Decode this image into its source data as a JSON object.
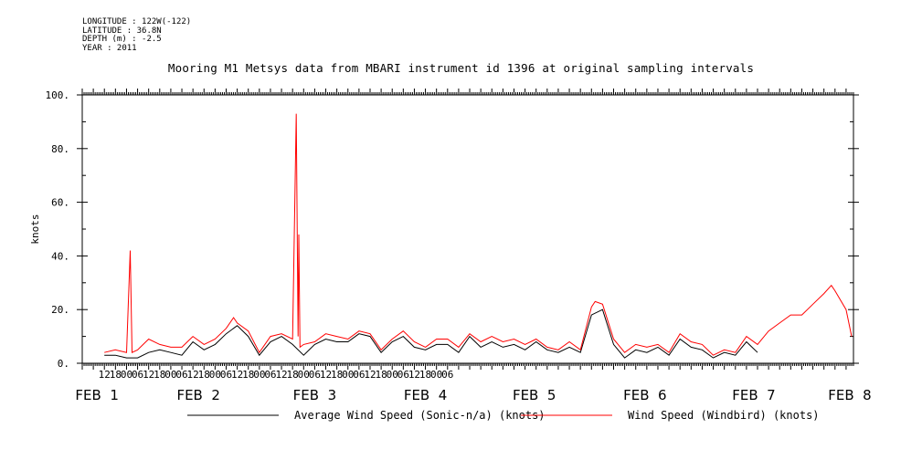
{
  "header": {
    "longitude": "LONGITUDE : 122W(-122)",
    "latitude": "LATITUDE : 36.8N",
    "depth": "DEPTH (m) : -2.5",
    "year": "YEAR : 2011"
  },
  "chart_data": {
    "type": "line",
    "title": "Mooring M1 Metsys data from MBARI instrument id 1396 at original sampling intervals",
    "ylabel": "knots",
    "xlabel": "",
    "ylim": [
      0,
      100
    ],
    "y_ticks": [
      "0.",
      "20.",
      "40.",
      "60.",
      "80.",
      "100."
    ],
    "hour_ticks": [
      "12",
      "18",
      "00",
      "06",
      "12",
      "18",
      "00",
      "06",
      "12",
      "18",
      "00",
      "06",
      "12",
      "18",
      "00",
      "06",
      "12",
      "18",
      "00",
      "06",
      "12",
      "18",
      "00",
      "06",
      "12",
      "18",
      "00",
      "06",
      "12",
      "18",
      "00",
      "06"
    ],
    "date_labels": [
      "FEB  1",
      "FEB  2",
      "FEB  3",
      "FEB  4",
      "FEB  5",
      "FEB  6",
      "FEB  7",
      "FEB  8"
    ],
    "grid": false,
    "legend_position": "bottom",
    "series": [
      {
        "name": "Average Wind Speed (Sonic-n/a) (knots)",
        "color": "#000000",
        "points": [
          [
            0,
            3
          ],
          [
            6,
            3
          ],
          [
            12,
            2
          ],
          [
            18,
            2
          ],
          [
            24,
            4
          ],
          [
            30,
            5
          ],
          [
            36,
            4
          ],
          [
            42,
            3
          ],
          [
            48,
            8
          ],
          [
            54,
            5
          ],
          [
            60,
            7
          ],
          [
            66,
            11
          ],
          [
            72,
            14
          ],
          [
            78,
            10
          ],
          [
            84,
            3
          ],
          [
            90,
            8
          ],
          [
            96,
            10
          ],
          [
            102,
            7
          ],
          [
            108,
            3
          ],
          [
            114,
            7
          ],
          [
            120,
            9
          ],
          [
            126,
            8
          ],
          [
            132,
            8
          ],
          [
            138,
            11
          ],
          [
            144,
            10
          ],
          [
            150,
            4
          ],
          [
            156,
            8
          ],
          [
            162,
            10
          ],
          [
            168,
            6
          ],
          [
            174,
            5
          ],
          [
            180,
            7
          ],
          [
            186,
            7
          ],
          [
            192,
            4
          ],
          [
            198,
            10
          ],
          [
            204,
            6
          ],
          [
            210,
            8
          ],
          [
            216,
            6
          ],
          [
            222,
            7
          ],
          [
            228,
            5
          ],
          [
            234,
            8
          ],
          [
            240,
            5
          ],
          [
            246,
            4
          ],
          [
            252,
            6
          ],
          [
            258,
            4
          ],
          [
            264,
            18
          ],
          [
            270,
            20
          ],
          [
            276,
            7
          ],
          [
            282,
            2
          ],
          [
            288,
            5
          ],
          [
            294,
            4
          ],
          [
            300,
            6
          ],
          [
            306,
            3
          ],
          [
            312,
            9
          ],
          [
            318,
            6
          ],
          [
            324,
            5
          ],
          [
            330,
            2
          ],
          [
            336,
            4
          ],
          [
            342,
            3
          ],
          [
            348,
            8
          ],
          [
            354,
            4
          ]
        ]
      },
      {
        "name": "Wind Speed (Windbird) (knots)",
        "color": "#ff0000",
        "points": [
          [
            0,
            4
          ],
          [
            6,
            5
          ],
          [
            12,
            4
          ],
          [
            14,
            42
          ],
          [
            15,
            4
          ],
          [
            18,
            5
          ],
          [
            24,
            9
          ],
          [
            30,
            7
          ],
          [
            36,
            6
          ],
          [
            42,
            6
          ],
          [
            48,
            10
          ],
          [
            54,
            7
          ],
          [
            60,
            9
          ],
          [
            66,
            13
          ],
          [
            70,
            17
          ],
          [
            72,
            15
          ],
          [
            78,
            12
          ],
          [
            84,
            4
          ],
          [
            90,
            10
          ],
          [
            96,
            11
          ],
          [
            102,
            9
          ],
          [
            104,
            93
          ],
          [
            105,
            10
          ],
          [
            105.4,
            48
          ],
          [
            106,
            6
          ],
          [
            108,
            7
          ],
          [
            114,
            8
          ],
          [
            120,
            11
          ],
          [
            126,
            10
          ],
          [
            132,
            9
          ],
          [
            138,
            12
          ],
          [
            144,
            11
          ],
          [
            150,
            5
          ],
          [
            156,
            9
          ],
          [
            162,
            12
          ],
          [
            168,
            8
          ],
          [
            174,
            6
          ],
          [
            180,
            9
          ],
          [
            186,
            9
          ],
          [
            192,
            6
          ],
          [
            198,
            11
          ],
          [
            204,
            8
          ],
          [
            210,
            10
          ],
          [
            216,
            8
          ],
          [
            222,
            9
          ],
          [
            228,
            7
          ],
          [
            234,
            9
          ],
          [
            240,
            6
          ],
          [
            246,
            5
          ],
          [
            252,
            8
          ],
          [
            258,
            5
          ],
          [
            264,
            21
          ],
          [
            266,
            23
          ],
          [
            270,
            22
          ],
          [
            276,
            9
          ],
          [
            282,
            4
          ],
          [
            288,
            7
          ],
          [
            294,
            6
          ],
          [
            300,
            7
          ],
          [
            306,
            4
          ],
          [
            312,
            11
          ],
          [
            318,
            8
          ],
          [
            324,
            7
          ],
          [
            330,
            3
          ],
          [
            336,
            5
          ],
          [
            342,
            4
          ],
          [
            348,
            10
          ],
          [
            354,
            7
          ],
          [
            360,
            12
          ],
          [
            366,
            15
          ],
          [
            372,
            18
          ],
          [
            378,
            18
          ],
          [
            384,
            22
          ],
          [
            390,
            26
          ],
          [
            394,
            29
          ],
          [
            396,
            27
          ],
          [
            402,
            20
          ],
          [
            405,
            10
          ]
        ]
      }
    ],
    "x_range_hours": [
      -12,
      406
    ]
  }
}
